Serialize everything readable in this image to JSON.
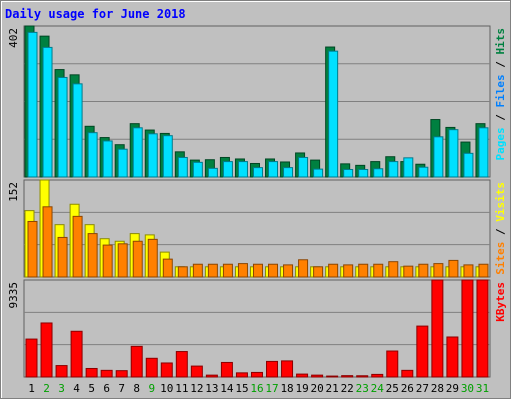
{
  "chart_data": {
    "type": "bar",
    "title": "Daily usage for June 2018",
    "categories": [
      "1",
      "2",
      "3",
      "4",
      "5",
      "6",
      "7",
      "8",
      "9",
      "10",
      "11",
      "12",
      "13",
      "14",
      "15",
      "16",
      "17",
      "18",
      "19",
      "20",
      "21",
      "22",
      "23",
      "24",
      "25",
      "26",
      "27",
      "28",
      "29",
      "30",
      "31"
    ],
    "weekend_days": [
      2,
      3,
      9,
      16,
      17,
      23,
      24,
      30,
      31
    ],
    "colors": {
      "background": "#C0C0C0",
      "title": "#0000FF",
      "hits": "#008040",
      "files": "#00E0FF",
      "pages": "#0080FF",
      "visits": "#FFFF00",
      "sites": "#FF8000",
      "kbytes": "#FF0000",
      "weekday_label": "#000000",
      "weekend_label": "#00A000"
    },
    "panels": [
      {
        "id": "hits-files-pages",
        "max_label": "402",
        "ylim": [
          0,
          402
        ],
        "legend": [
          {
            "text": "Pages",
            "color": "#00E0FF"
          },
          {
            "text": " / ",
            "color": "#000000"
          },
          {
            "text": "Files",
            "color": "#0080FF"
          },
          {
            "text": " / ",
            "color": "#000000"
          },
          {
            "text": "Hits",
            "color": "#008040"
          }
        ],
        "series": [
          {
            "name": "Hits",
            "color": "#008040",
            "values": [
              402,
              375,
              286,
              272,
              135,
              105,
              86,
              142,
              125,
              116,
              67,
              45,
              46,
              52,
              48,
              36,
              48,
              40,
              64,
              45,
              346,
              35,
              31,
              41,
              54,
              41,
              34,
              153,
              132,
              93,
              142
            ]
          },
          {
            "name": "Files",
            "color": "#00E0FF",
            "values": [
              385,
              345,
              265,
              248,
              118,
              96,
              74,
              131,
              115,
              110,
              52,
              39,
              23,
              41,
              41,
              25,
              41,
              25,
              52,
              21,
              335,
              20,
              20,
              22,
              41,
              51,
              26,
              107,
              126,
              63,
              131
            ]
          }
        ]
      },
      {
        "id": "visits-sites",
        "max_label": "152",
        "ylim": [
          0,
          152
        ],
        "legend": [
          {
            "text": "Sites",
            "color": "#FF8000"
          },
          {
            "text": " / ",
            "color": "#000000"
          },
          {
            "text": "Visits",
            "color": "#FFFF00"
          }
        ],
        "series": [
          {
            "name": "Visits",
            "color": "#FFFF00",
            "values": [
              104,
              152,
              82,
              114,
              82,
              60,
              56,
              68,
              66,
              39,
              16,
              16,
              16,
              16,
              16,
              16,
              16,
              16,
              16,
              16,
              16,
              16,
              16,
              16,
              16,
              16,
              16,
              16,
              16,
              16,
              16
            ]
          },
          {
            "name": "Sites",
            "color": "#FF8000",
            "values": [
              87,
              110,
              62,
              95,
              68,
              50,
              52,
              56,
              59,
              28,
              16,
              20,
              20,
              20,
              21,
              20,
              20,
              19,
              27,
              16,
              20,
              19,
              20,
              20,
              24,
              17,
              20,
              21,
              26,
              19,
              20
            ]
          }
        ]
      },
      {
        "id": "kbytes",
        "max_label": "9335",
        "ylim": [
          0,
          9335
        ],
        "legend": [
          {
            "text": "KBytes",
            "color": "#FF0000"
          }
        ],
        "series": [
          {
            "name": "KBytes",
            "color": "#FF0000",
            "values": [
              3650,
              5200,
              1100,
              4400,
              820,
              640,
              610,
              2950,
              1800,
              1350,
              2450,
              1050,
              180,
              1400,
              400,
              440,
              1500,
              1550,
              280,
              180,
              90,
              130,
              120,
              250,
              2500,
              640,
              4900,
              9335,
              3850,
              9335,
              9335
            ]
          }
        ]
      }
    ]
  }
}
